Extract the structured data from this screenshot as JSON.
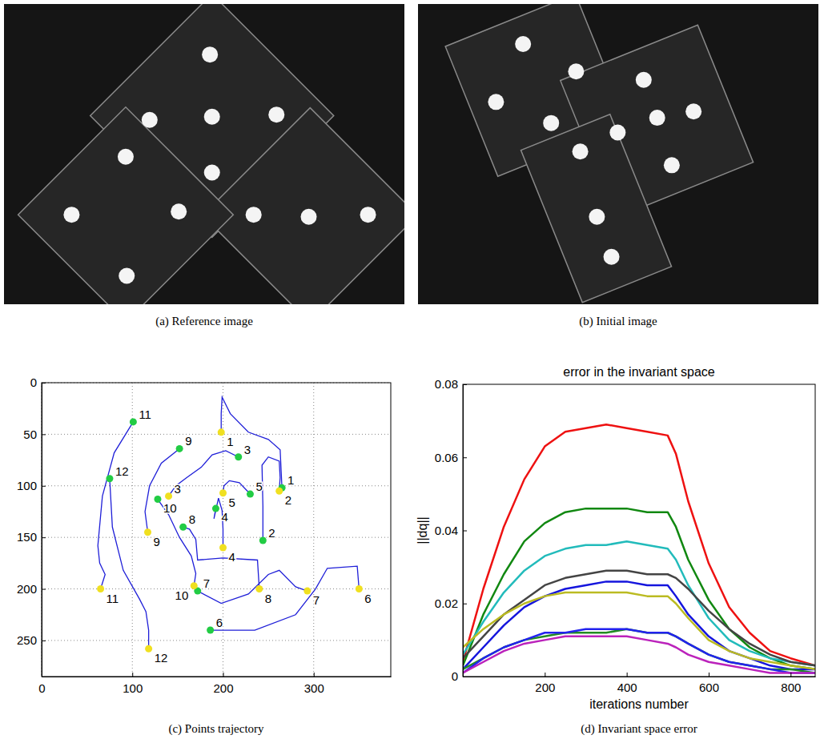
{
  "images": [
    {
      "caption": "(a) Reference image"
    },
    {
      "caption": "(b) Initial image"
    }
  ],
  "chart_data": [
    {
      "type": "trajectory",
      "caption": "(c) Points trajectory",
      "xlim": [
        0,
        385
      ],
      "ylim": [
        285,
        0
      ],
      "xticks": [
        0,
        100,
        200,
        300
      ],
      "yticks": [
        0,
        50,
        100,
        150,
        200,
        250
      ],
      "grid": true,
      "series": [
        {
          "type": "scatter",
          "color": "#22cc44",
          "marker": "circle",
          "labels": [
            "1",
            "2",
            "3",
            "4",
            "5",
            "6",
            "7",
            "8",
            "9",
            "10",
            "11",
            "12"
          ],
          "x": [
            265,
            244,
            217,
            192,
            230,
            186,
            172,
            156,
            152,
            128,
            101,
            75
          ],
          "y": [
            102,
            153,
            72,
            122,
            108,
            240,
            202,
            140,
            64,
            113,
            38,
            93
          ]
        },
        {
          "type": "scatter",
          "color": "#f0e020",
          "marker": "circle",
          "labels": [
            "1",
            "2",
            "3",
            "4",
            "5",
            "6",
            "7",
            "8",
            "9",
            "10",
            "11",
            "12"
          ],
          "x": [
            198,
            262,
            140,
            200,
            200,
            350,
            293,
            240,
            117,
            168,
            65,
            118
          ],
          "y": [
            48,
            105,
            110,
            160,
            107,
            200,
            202,
            200,
            145,
            197,
            200,
            258
          ]
        },
        {
          "type": "line",
          "color": "#1f1fd8",
          "x": [
            265,
            263,
            250,
            228,
            208,
            199,
            198,
            198
          ],
          "y": [
            102,
            65,
            55,
            48,
            30,
            14,
            30,
            48
          ]
        },
        {
          "type": "line",
          "color": "#1f1fd8",
          "x": [
            244,
            244,
            243,
            250,
            262,
            263,
            262
          ],
          "y": [
            153,
            120,
            80,
            72,
            76,
            92,
            105
          ]
        },
        {
          "type": "line",
          "color": "#1f1fd8",
          "x": [
            217,
            203,
            188,
            176,
            160,
            148,
            140
          ],
          "y": [
            72,
            66,
            70,
            82,
            92,
            100,
            110
          ]
        },
        {
          "type": "line",
          "color": "#1f1fd8",
          "x": [
            192,
            190,
            195,
            199,
            200,
            200
          ],
          "y": [
            122,
            132,
            112,
            124,
            142,
            160
          ]
        },
        {
          "type": "line",
          "color": "#1f1fd8",
          "x": [
            230,
            218,
            207,
            201,
            200
          ],
          "y": [
            108,
            97,
            95,
            100,
            107
          ]
        },
        {
          "type": "line",
          "color": "#1f1fd8",
          "x": [
            186,
            235,
            280,
            302,
            315,
            348,
            350
          ],
          "y": [
            240,
            240,
            225,
            200,
            180,
            178,
            200
          ]
        },
        {
          "type": "line",
          "color": "#1f1fd8",
          "x": [
            172,
            198,
            228,
            250,
            262,
            280,
            293
          ],
          "y": [
            202,
            214,
            205,
            186,
            182,
            198,
            202
          ]
        },
        {
          "type": "line",
          "color": "#1f1fd8",
          "x": [
            156,
            163,
            170,
            172,
            200,
            238,
            240
          ],
          "y": [
            140,
            142,
            152,
            172,
            170,
            172,
            200
          ]
        },
        {
          "type": "line",
          "color": "#1f1fd8",
          "x": [
            152,
            132,
            119,
            114,
            117
          ],
          "y": [
            64,
            78,
            100,
            125,
            145
          ]
        },
        {
          "type": "line",
          "color": "#1f1fd8",
          "x": [
            128,
            140,
            152,
            165,
            170,
            168
          ],
          "y": [
            113,
            128,
            150,
            168,
            185,
            197
          ]
        },
        {
          "type": "line",
          "color": "#1f1fd8",
          "x": [
            101,
            80,
            67,
            62,
            64,
            70,
            65
          ],
          "y": [
            38,
            68,
            110,
            158,
            175,
            186,
            200
          ]
        },
        {
          "type": "line",
          "color": "#1f1fd8",
          "x": [
            75,
            78,
            90,
            108,
            115,
            118,
            118
          ],
          "y": [
            93,
            140,
            182,
            210,
            222,
            240,
            258
          ]
        }
      ]
    },
    {
      "type": "line",
      "title": "error in the invariant space",
      "caption": "(d) Invariant space error",
      "xlabel": "iterations number",
      "ylabel": "||dq||",
      "xlim": [
        0,
        860
      ],
      "ylim": [
        0,
        0.08
      ],
      "xticks": [
        200,
        400,
        600,
        800
      ],
      "yticks": [
        0,
        0.02,
        0.04,
        0.06,
        0.08
      ],
      "x": [
        0,
        50,
        100,
        150,
        200,
        250,
        300,
        350,
        400,
        450,
        500,
        520,
        550,
        600,
        650,
        700,
        750,
        800,
        860
      ],
      "series": [
        {
          "color": "#ee1111",
          "values": [
            0.004,
            0.024,
            0.041,
            0.054,
            0.063,
            0.067,
            0.068,
            0.069,
            0.068,
            0.067,
            0.066,
            0.061,
            0.048,
            0.031,
            0.019,
            0.012,
            0.007,
            0.005,
            0.003
          ]
        },
        {
          "color": "#118811",
          "values": [
            0.003,
            0.017,
            0.028,
            0.037,
            0.042,
            0.045,
            0.046,
            0.046,
            0.046,
            0.045,
            0.045,
            0.041,
            0.032,
            0.021,
            0.013,
            0.008,
            0.005,
            0.003,
            0.002
          ]
        },
        {
          "color": "#22bbbb",
          "values": [
            0.006,
            0.015,
            0.023,
            0.029,
            0.033,
            0.035,
            0.036,
            0.036,
            0.037,
            0.036,
            0.035,
            0.032,
            0.025,
            0.016,
            0.01,
            0.007,
            0.005,
            0.004,
            0.003
          ]
        },
        {
          "color": "#444444",
          "values": [
            0.005,
            0.011,
            0.017,
            0.021,
            0.025,
            0.027,
            0.028,
            0.029,
            0.029,
            0.028,
            0.028,
            0.027,
            0.024,
            0.018,
            0.013,
            0.009,
            0.006,
            0.004,
            0.003
          ]
        },
        {
          "color": "#1515dd",
          "values": [
            0.002,
            0.008,
            0.014,
            0.019,
            0.022,
            0.024,
            0.025,
            0.026,
            0.026,
            0.025,
            0.025,
            0.022,
            0.017,
            0.011,
            0.007,
            0.005,
            0.003,
            0.002,
            0.002
          ]
        },
        {
          "color": "#bbbb22",
          "values": [
            0.008,
            0.013,
            0.017,
            0.02,
            0.022,
            0.023,
            0.023,
            0.023,
            0.023,
            0.022,
            0.022,
            0.02,
            0.016,
            0.01,
            0.007,
            0.005,
            0.004,
            0.003,
            0.002
          ]
        },
        {
          "color": "#228b22",
          "values": [
            0.002,
            0.005,
            0.008,
            0.01,
            0.011,
            0.012,
            0.012,
            0.012,
            0.013,
            0.012,
            0.012,
            0.011,
            0.009,
            0.006,
            0.004,
            0.003,
            0.002,
            0.002,
            0.001
          ]
        },
        {
          "color": "#2222ee",
          "values": [
            0.001,
            0.005,
            0.008,
            0.01,
            0.012,
            0.012,
            0.013,
            0.013,
            0.013,
            0.012,
            0.012,
            0.011,
            0.009,
            0.006,
            0.004,
            0.003,
            0.002,
            0.001,
            0.001
          ]
        },
        {
          "color": "#bb22bb",
          "values": [
            0.001,
            0.004,
            0.007,
            0.009,
            0.01,
            0.011,
            0.011,
            0.011,
            0.011,
            0.01,
            0.009,
            0.008,
            0.006,
            0.004,
            0.003,
            0.002,
            0.001,
            0.001,
            0.001
          ]
        }
      ]
    }
  ]
}
